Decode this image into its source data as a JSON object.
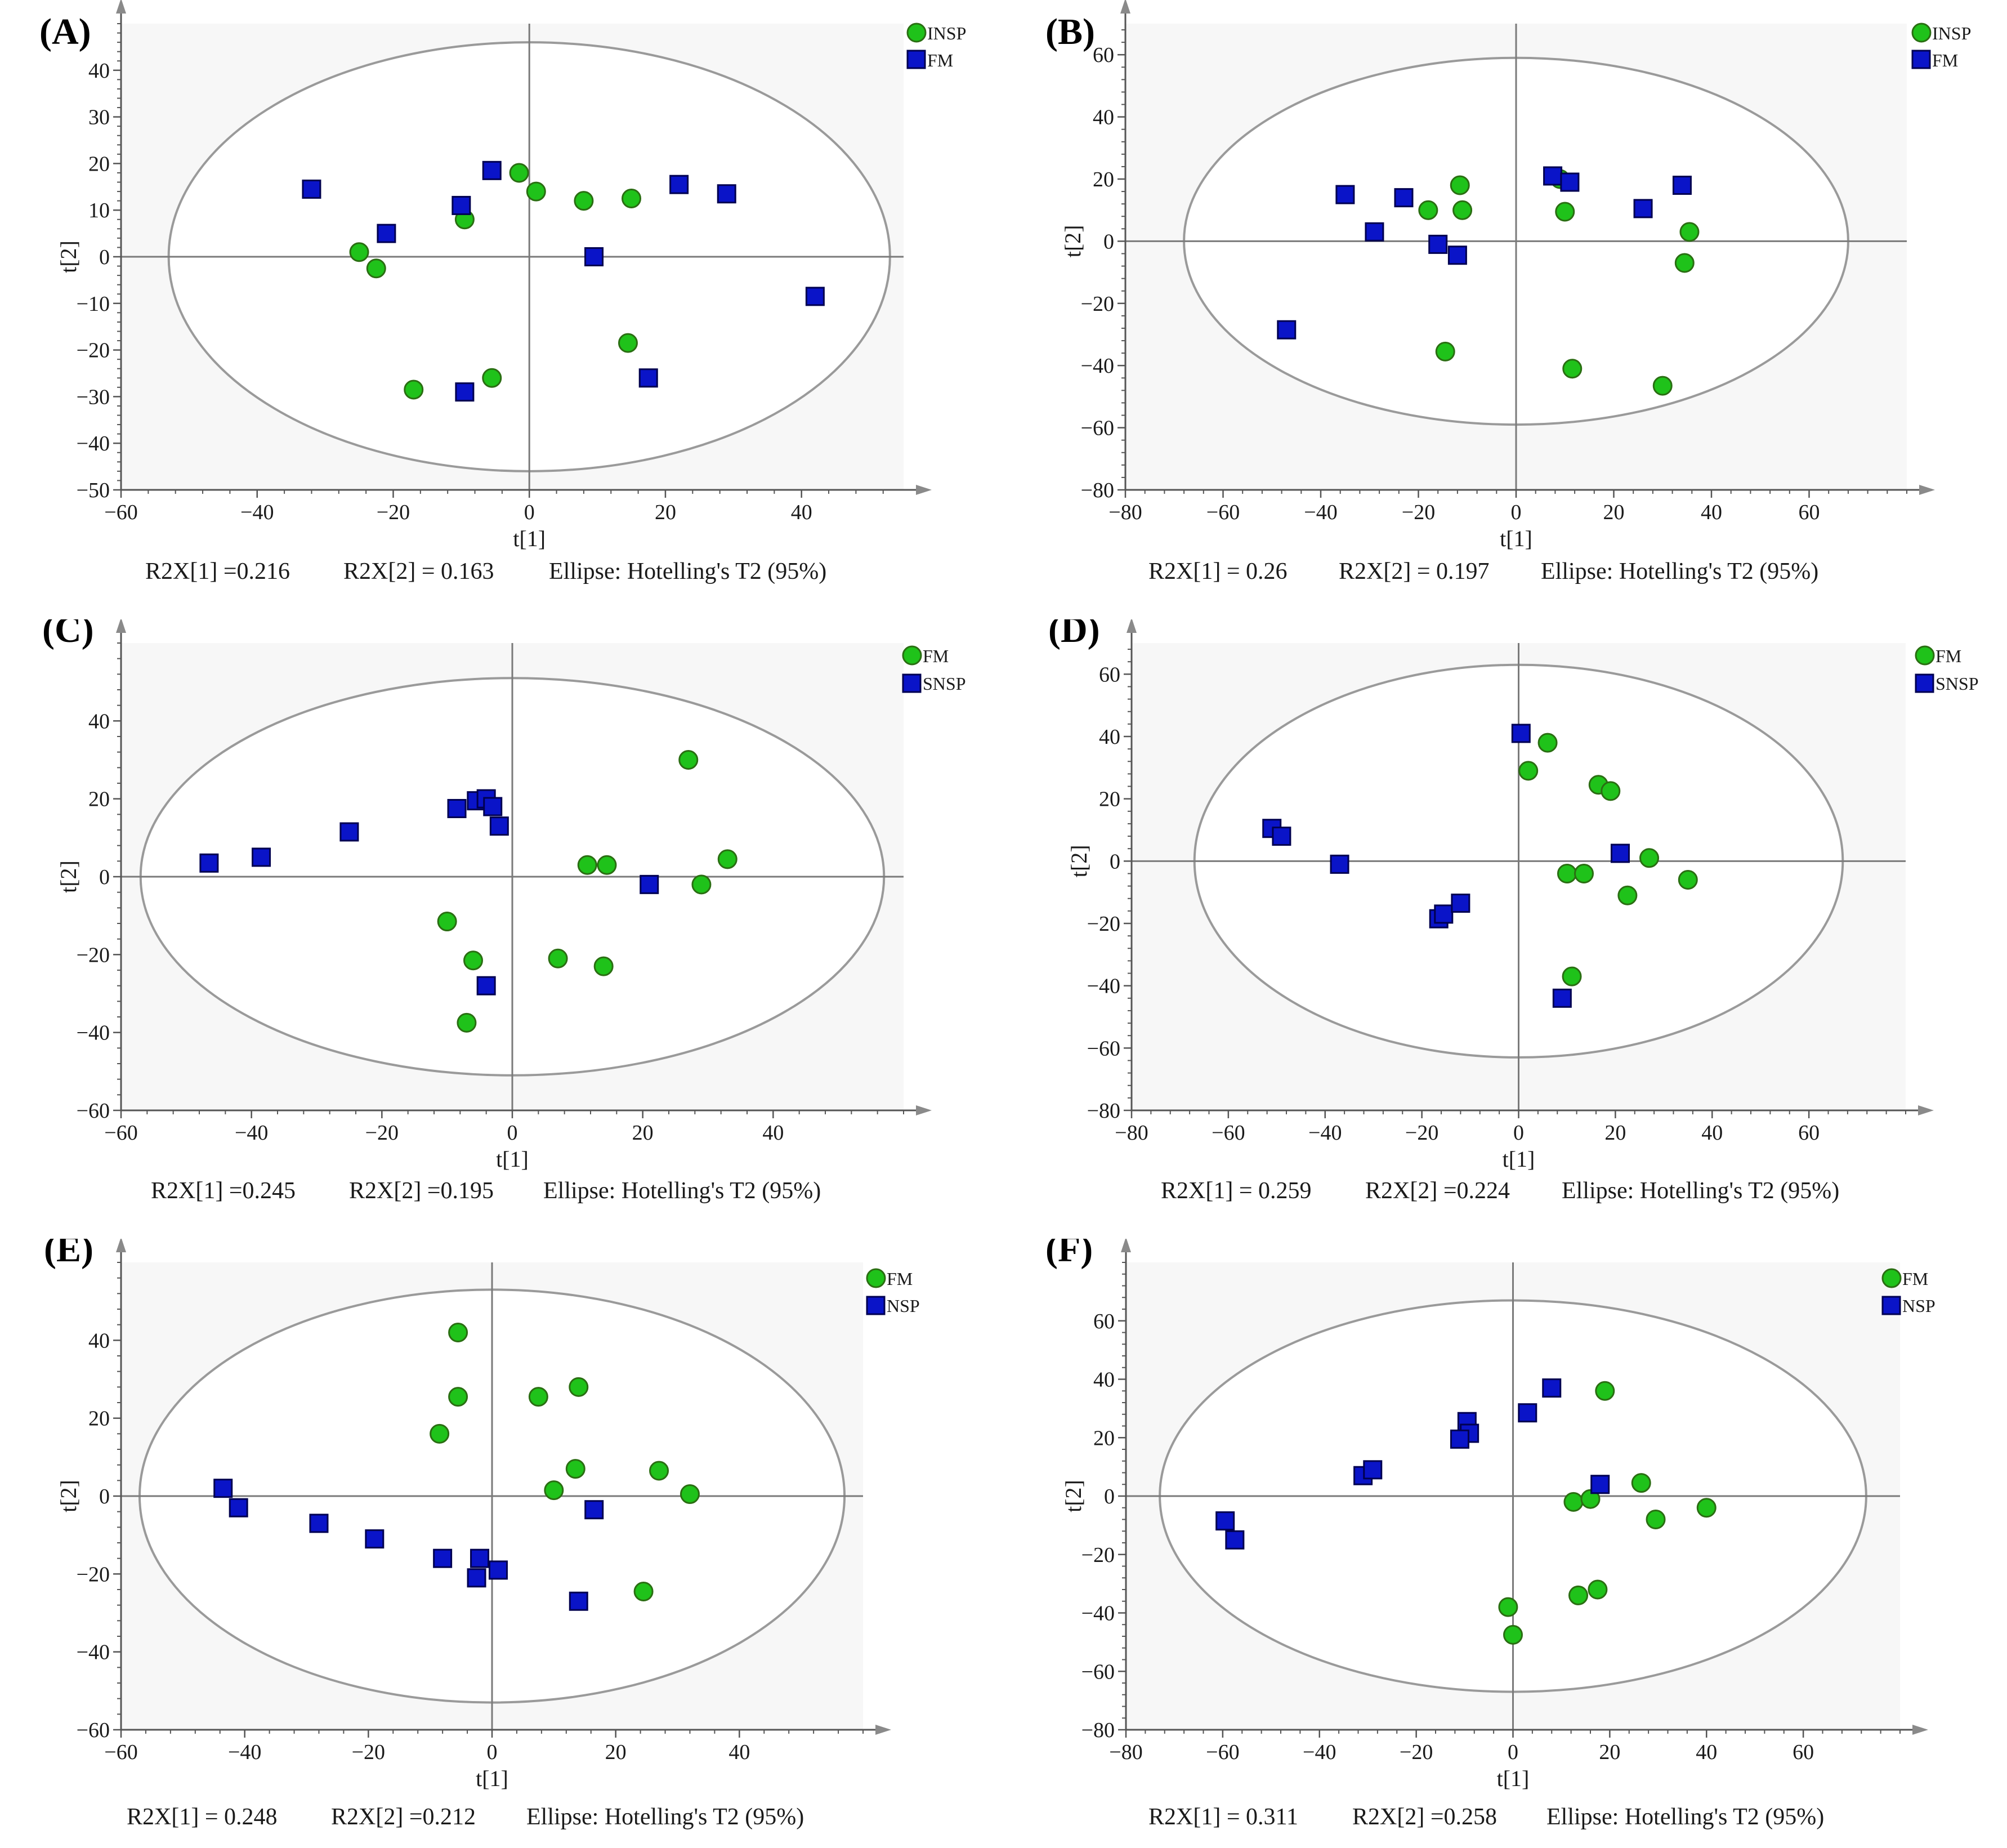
{
  "colors": {
    "group_circle": "#1fc21a",
    "group_square": "#0a14c8",
    "ellipse": "#9a9a9a",
    "background": "#f7f7f7"
  },
  "chart_data": [
    {
      "type": "scatter",
      "panel_label": "(A)",
      "xlabel": "t[1]",
      "ylabel": "t[2]",
      "xlim": [
        -60,
        55
      ],
      "ylim": [
        -50,
        50
      ],
      "xticks": [
        -60,
        -40,
        -20,
        0,
        20,
        40
      ],
      "yticks": [
        -50,
        -40,
        -30,
        -20,
        -10,
        0,
        10,
        20,
        30,
        40
      ],
      "ellipse": {
        "rx": 53,
        "ry": 46
      },
      "legend": [
        "INSP",
        "FM"
      ],
      "summary": {
        "r2x1": "R2X[1] =0.216",
        "r2x2": "R2X[2] = 0.163",
        "ellipse": "Ellipse: Hotelling's T2 (95%)"
      },
      "series": [
        {
          "name": "INSP",
          "marker": "circle",
          "points": [
            [
              -25,
              1
            ],
            [
              -22.5,
              -2.5
            ],
            [
              -9.5,
              8
            ],
            [
              -1.5,
              18
            ],
            [
              1,
              14
            ],
            [
              8,
              12
            ],
            [
              15,
              12.5
            ],
            [
              -17,
              -28.5
            ],
            [
              -5.5,
              -26
            ],
            [
              14.5,
              -18.5
            ]
          ]
        },
        {
          "name": "FM",
          "marker": "square",
          "points": [
            [
              -32,
              14.5
            ],
            [
              -21,
              5
            ],
            [
              -10,
              11
            ],
            [
              -5.5,
              18.5
            ],
            [
              9.5,
              0
            ],
            [
              22,
              15.5
            ],
            [
              29,
              13.5
            ],
            [
              42,
              -8.5
            ],
            [
              17.5,
              -26
            ],
            [
              -9.5,
              -29
            ]
          ]
        }
      ]
    },
    {
      "type": "scatter",
      "panel_label": "(B)",
      "xlabel": "t[1]",
      "ylabel": "t[2]",
      "xlim": [
        -80,
        80
      ],
      "ylim": [
        -80,
        70
      ],
      "xticks": [
        -80,
        -60,
        -40,
        -20,
        0,
        20,
        40,
        60
      ],
      "yticks": [
        -80,
        -60,
        -40,
        -20,
        0,
        20,
        40,
        60
      ],
      "ellipse": {
        "rx": 68,
        "ry": 59
      },
      "legend": [
        "INSP",
        "FM"
      ],
      "summary": {
        "r2x1": "R2X[1] = 0.26",
        "r2x2": "R2X[2] = 0.197",
        "ellipse": "Ellipse: Hotelling's T2 (95%)"
      },
      "series": [
        {
          "name": "INSP",
          "marker": "circle",
          "points": [
            [
              -18,
              10
            ],
            [
              -11,
              10
            ],
            [
              -11.5,
              18
            ],
            [
              9,
              20
            ],
            [
              10,
              9.5
            ],
            [
              35.5,
              3
            ],
            [
              34.5,
              -7
            ],
            [
              -14.5,
              -35.5
            ],
            [
              11.5,
              -41
            ],
            [
              30,
              -46.5
            ]
          ]
        },
        {
          "name": "FM",
          "marker": "square",
          "points": [
            [
              -35,
              15
            ],
            [
              -23,
              14
            ],
            [
              -29,
              3
            ],
            [
              -16,
              -1
            ],
            [
              -12,
              -4.5
            ],
            [
              7.5,
              21
            ],
            [
              11,
              19
            ],
            [
              26,
              10.5
            ],
            [
              34,
              18
            ],
            [
              -47,
              -28.5
            ]
          ]
        }
      ]
    },
    {
      "type": "scatter",
      "panel_label": "(C)",
      "xlabel": "t[1]",
      "ylabel": "t[2]",
      "xlim": [
        -60,
        60
      ],
      "ylim": [
        -60,
        60
      ],
      "xticks": [
        -60,
        -40,
        -20,
        0,
        20,
        40
      ],
      "yticks": [
        -60,
        -40,
        -20,
        0,
        20,
        40
      ],
      "ellipse": {
        "rx": 57,
        "ry": 51
      },
      "legend": [
        "FM",
        "SNSP"
      ],
      "summary": {
        "r2x1": "R2X[1] =0.245",
        "r2x2": "R2X[2] =0.195",
        "ellipse": "Ellipse: Hotelling's T2 (95%)"
      },
      "series": [
        {
          "name": "FM",
          "marker": "circle",
          "points": [
            [
              27,
              30
            ],
            [
              11.5,
              3
            ],
            [
              14.5,
              3
            ],
            [
              29,
              -2
            ],
            [
              33,
              4.5
            ],
            [
              -10,
              -11.5
            ],
            [
              -6,
              -21.5
            ],
            [
              7,
              -21
            ],
            [
              14,
              -23
            ],
            [
              -7,
              -37.5
            ]
          ]
        },
        {
          "name": "SNSP",
          "marker": "square",
          "points": [
            [
              -46.5,
              3.5
            ],
            [
              -38.5,
              5
            ],
            [
              -25,
              11.5
            ],
            [
              -8.5,
              17.5
            ],
            [
              -5.5,
              19.5
            ],
            [
              -4,
              20
            ],
            [
              -3,
              18
            ],
            [
              -2,
              13
            ],
            [
              21,
              -2
            ],
            [
              -4,
              -28
            ]
          ]
        }
      ]
    },
    {
      "type": "scatter",
      "panel_label": "(D)",
      "xlabel": "t[1]",
      "ylabel": "t[2]",
      "xlim": [
        -80,
        80
      ],
      "ylim": [
        -80,
        70
      ],
      "xticks": [
        -80,
        -60,
        -40,
        -20,
        0,
        20,
        40,
        60
      ],
      "yticks": [
        -80,
        -60,
        -40,
        -20,
        0,
        20,
        40,
        60
      ],
      "ellipse": {
        "rx": 67,
        "ry": 63
      },
      "legend": [
        "FM",
        "SNSP"
      ],
      "summary": {
        "r2x1": "R2X[1] = 0.259",
        "r2x2": "R2X[2] =0.224",
        "ellipse": "Ellipse: Hotelling's T2 (95%)"
      },
      "series": [
        {
          "name": "FM",
          "marker": "circle",
          "points": [
            [
              6,
              38
            ],
            [
              2,
              29
            ],
            [
              16.5,
              24.5
            ],
            [
              19,
              22.5
            ],
            [
              27,
              1
            ],
            [
              35,
              -6
            ],
            [
              10,
              -4
            ],
            [
              13.5,
              -4
            ],
            [
              22.5,
              -11
            ],
            [
              11,
              -37
            ]
          ]
        },
        {
          "name": "SNSP",
          "marker": "square",
          "points": [
            [
              0.5,
              41
            ],
            [
              -51,
              10.5
            ],
            [
              -49,
              8
            ],
            [
              -37,
              -1
            ],
            [
              -16.5,
              -18.5
            ],
            [
              -15.5,
              -17
            ],
            [
              -12,
              -13.5
            ],
            [
              21,
              2.5
            ],
            [
              9,
              -44
            ]
          ]
        }
      ]
    },
    {
      "type": "scatter",
      "panel_label": "(E)",
      "xlabel": "t[1]",
      "ylabel": "t[2]",
      "xlim": [
        -60,
        60
      ],
      "ylim": [
        -60,
        60
      ],
      "xticks": [
        -60,
        -40,
        -20,
        0,
        20,
        40
      ],
      "yticks": [
        -60,
        -40,
        -20,
        0,
        20,
        40
      ],
      "ellipse": {
        "rx": 57,
        "ry": 53
      },
      "legend": [
        "FM",
        "NSP"
      ],
      "summary": {
        "r2x1": "R2X[1] = 0.248",
        "r2x2": "R2X[2] =0.212",
        "ellipse": "Ellipse: Hotelling's T2 (95%)"
      },
      "series": [
        {
          "name": "FM",
          "marker": "circle",
          "points": [
            [
              -5.5,
              42
            ],
            [
              -5.5,
              25.5
            ],
            [
              -8.5,
              16
            ],
            [
              7.5,
              25.5
            ],
            [
              14,
              28
            ],
            [
              13.5,
              7
            ],
            [
              10,
              1.5
            ],
            [
              27,
              6.5
            ],
            [
              32,
              0.5
            ],
            [
              24.5,
              -24.5
            ]
          ]
        },
        {
          "name": "NSP",
          "marker": "square",
          "points": [
            [
              -43.5,
              2
            ],
            [
              -41,
              -3
            ],
            [
              -28,
              -7
            ],
            [
              -19,
              -11
            ],
            [
              -8,
              -16
            ],
            [
              -2,
              -16
            ],
            [
              1,
              -19
            ],
            [
              -2.5,
              -21
            ],
            [
              16.5,
              -3.5
            ],
            [
              14,
              -27
            ]
          ]
        }
      ]
    },
    {
      "type": "scatter",
      "panel_label": "(F)",
      "xlabel": "t[1]",
      "ylabel": "t[2]",
      "xlim": [
        -80,
        80
      ],
      "ylim": [
        -80,
        80
      ],
      "xticks": [
        -80,
        -60,
        -40,
        -20,
        0,
        20,
        40,
        60
      ],
      "yticks": [
        -80,
        -60,
        -40,
        -20,
        0,
        20,
        40,
        60
      ],
      "ellipse": {
        "rx": 73,
        "ry": 67
      },
      "legend": [
        "FM",
        "NSP"
      ],
      "summary": {
        "r2x1": "R2X[1] = 0.311",
        "r2x2": "R2X[2] =0.258",
        "ellipse": "Ellipse: Hotelling's T2 (95%)"
      },
      "series": [
        {
          "name": "FM",
          "marker": "circle",
          "points": [
            [
              19,
              36
            ],
            [
              26.5,
              4.5
            ],
            [
              12.5,
              -2
            ],
            [
              16,
              -1
            ],
            [
              29.5,
              -8
            ],
            [
              40,
              -4
            ],
            [
              13.5,
              -34
            ],
            [
              17.5,
              -32
            ],
            [
              -1,
              -38
            ],
            [
              0,
              -47.5
            ]
          ]
        },
        {
          "name": "NSP",
          "marker": "square",
          "points": [
            [
              8,
              37
            ],
            [
              3,
              28.5
            ],
            [
              -9.5,
              25.5
            ],
            [
              -9,
              21.5
            ],
            [
              -11,
              19.5
            ],
            [
              -31,
              7
            ],
            [
              -29,
              9
            ],
            [
              18,
              4
            ],
            [
              -59.5,
              -8.5
            ],
            [
              -57.5,
              -15
            ]
          ]
        }
      ]
    }
  ]
}
